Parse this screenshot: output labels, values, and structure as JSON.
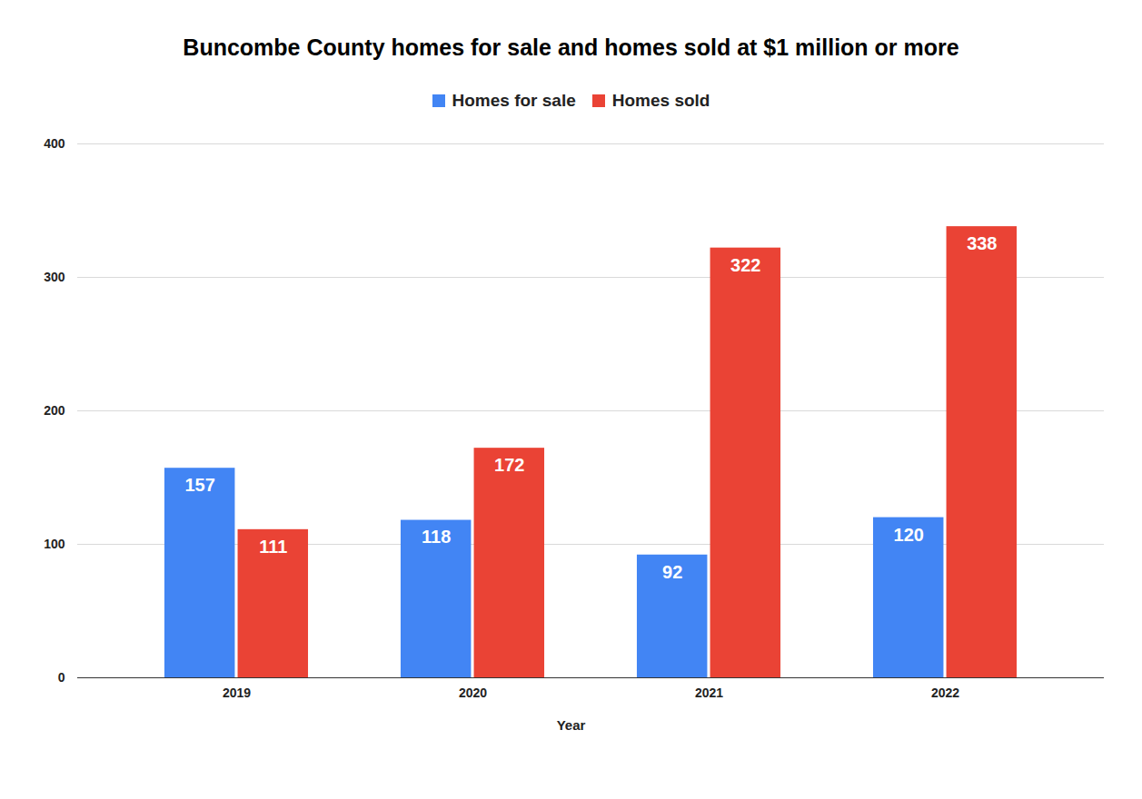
{
  "chart_data": {
    "type": "bar",
    "title": "Buncombe County homes for sale and homes sold at $1 million or more",
    "categories": [
      "2019",
      "2020",
      "2021",
      "2022"
    ],
    "series": [
      {
        "name": "Homes for sale",
        "color": "#4285f4",
        "values": [
          157,
          118,
          92,
          120
        ]
      },
      {
        "name": "Homes sold",
        "color": "#ea4335",
        "values": [
          111,
          172,
          322,
          338
        ]
      }
    ],
    "xlabel": "Year",
    "ylim": [
      0,
      400
    ],
    "yticks": [
      0,
      100,
      200,
      300,
      400
    ],
    "grid": true,
    "data_labels": true,
    "legend": "top"
  }
}
